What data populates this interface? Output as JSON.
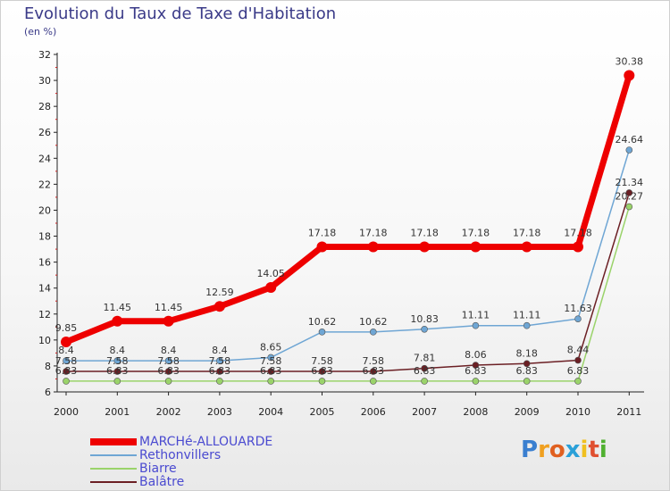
{
  "chart_data": {
    "type": "line",
    "title": "Evolution du Taux de Taxe d'Habitation",
    "subtitle": "(en %)",
    "x": [
      "2000",
      "2001",
      "2002",
      "2003",
      "2004",
      "2005",
      "2006",
      "2007",
      "2008",
      "2009",
      "2010",
      "2011"
    ],
    "ylim": [
      6,
      32
    ],
    "yticks": [
      "6",
      "8",
      "10",
      "12",
      "14",
      "16",
      "18",
      "20",
      "22",
      "24",
      "26",
      "28",
      "30",
      "32"
    ],
    "series": [
      {
        "name": "Balâtre",
        "color": "#6b1f24",
        "values": [
          7.58,
          7.58,
          7.58,
          7.58,
          7.58,
          7.58,
          7.58,
          7.81,
          8.06,
          8.18,
          8.44,
          21.34
        ],
        "labels": [
          "7.58",
          "7.58",
          "7.58",
          "7.58",
          "7.58",
          "7.58",
          "7.58",
          "7.81",
          "8.06",
          "8.18",
          "8.44",
          "21.34"
        ]
      },
      {
        "name": "Biarre",
        "color": "#9ad36a",
        "values": [
          6.83,
          6.83,
          6.83,
          6.83,
          6.83,
          6.83,
          6.83,
          6.83,
          6.83,
          6.83,
          6.83,
          20.27
        ],
        "labels": [
          "6.83",
          "6.83",
          "6.83",
          "6.83",
          "6.83",
          "6.83",
          "6.83",
          "6.83",
          "6.83",
          "6.83",
          "6.83",
          "20.27"
        ]
      },
      {
        "name": "Rethonvillers",
        "color": "#6fa6d4",
        "values": [
          8.4,
          8.4,
          8.4,
          8.4,
          8.65,
          10.62,
          10.62,
          10.83,
          11.11,
          11.11,
          11.63,
          24.64
        ],
        "labels": [
          "8.4",
          "8.4",
          "8.4",
          "8.4",
          "8.65",
          "10.62",
          "10.62",
          "10.83",
          "11.11",
          "11.11",
          "11.63",
          "24.64"
        ]
      },
      {
        "name": "MARCHé-ALLOUARDE",
        "color": "#ee0000",
        "values": [
          9.85,
          11.45,
          11.45,
          12.59,
          14.05,
          17.18,
          17.18,
          17.18,
          17.18,
          17.18,
          17.18,
          30.38
        ],
        "labels": [
          "9.85",
          "11.45",
          "11.45",
          "12.59",
          "14.05",
          "17.18",
          "17.18",
          "17.18",
          "17.18",
          "17.18",
          "17.18",
          "30.38"
        ]
      }
    ],
    "legend": [
      "MARCHé-ALLOUARDE",
      "Rethonvillers",
      "Biarre",
      "Balâtre"
    ],
    "legend_position": "bottom-left",
    "grid": false
  },
  "logo": "Proxiti"
}
